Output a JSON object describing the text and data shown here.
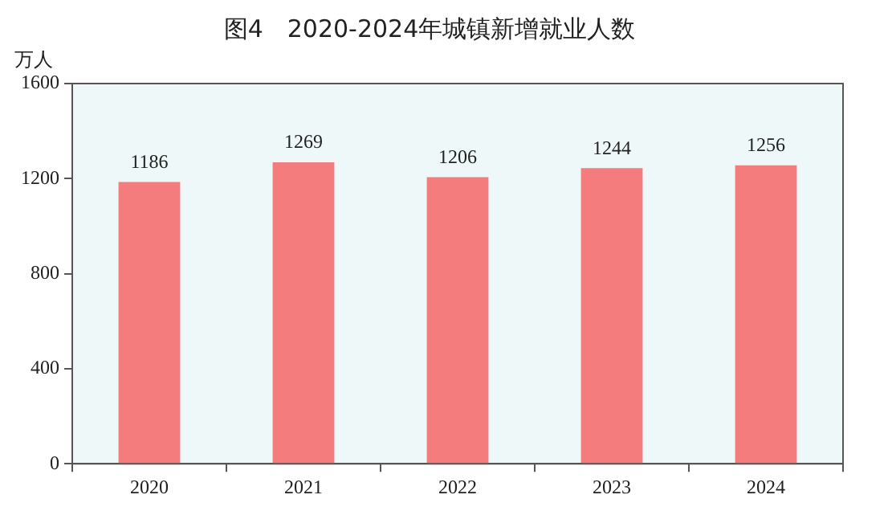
{
  "chart_data": {
    "type": "bar",
    "title": "图4　2020-2024年城镇新增就业人数",
    "ylabel": "万人",
    "categories": [
      "2020",
      "2021",
      "2022",
      "2023",
      "2024"
    ],
    "values": [
      1186,
      1269,
      1206,
      1244,
      1256
    ],
    "color": "#f47c7c",
    "ylim": [
      0,
      1600
    ],
    "yticks": [
      0,
      400,
      800,
      1200,
      1600
    ],
    "grid": false,
    "legend": false,
    "data_labels": true
  }
}
